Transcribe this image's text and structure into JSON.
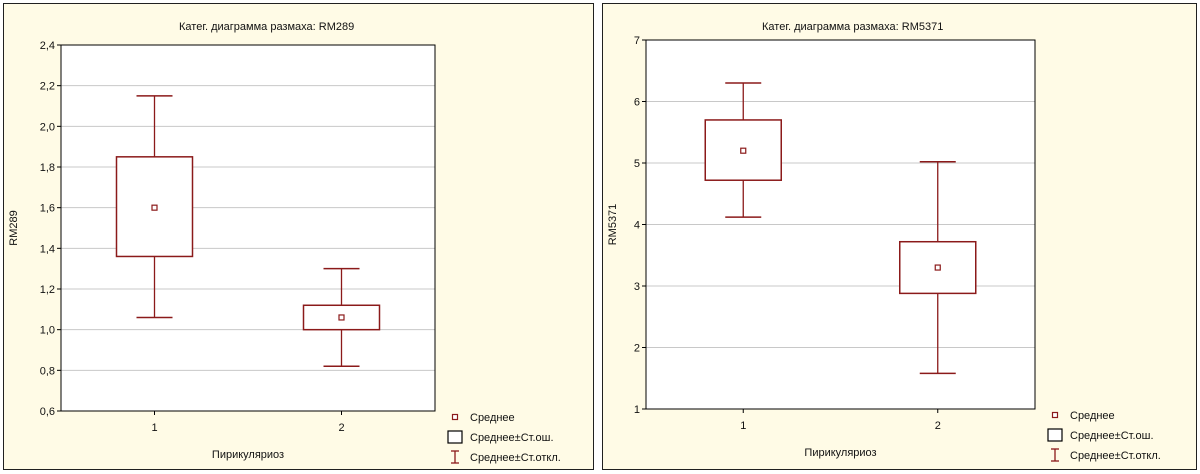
{
  "chart_data": [
    {
      "type": "box",
      "title": "Катег. диаграмма размаха:   RM289",
      "xlabel": "Пирикуляриоз",
      "ylabel": "RM289",
      "categories": [
        "1",
        "2"
      ],
      "ylim": [
        0.6,
        2.4
      ],
      "yticks": [
        0.6,
        0.8,
        1.0,
        1.2,
        1.4,
        1.6,
        1.8,
        2.0,
        2.2,
        2.4
      ],
      "ytick_labels": [
        "0,6",
        "0,8",
        "1,0",
        "1,2",
        "1,4",
        "1,6",
        "1,8",
        "2,0",
        "2,2",
        "2,4"
      ],
      "grid": true,
      "legend": [
        "Среднее",
        "Среднее±Ст.ош.",
        "Среднее±Ст.откл."
      ],
      "legend_position": "bottom-right, outside plot",
      "boxes": [
        {
          "category": "1",
          "mean": 1.6,
          "se_low": 1.36,
          "se_high": 1.85,
          "sd_low": 1.06,
          "sd_high": 2.15
        },
        {
          "category": "2",
          "mean": 1.06,
          "se_low": 1.0,
          "se_high": 1.12,
          "sd_low": 0.82,
          "sd_high": 1.3
        }
      ]
    },
    {
      "type": "box",
      "title": "Катег. диаграмма размаха:   RM5371",
      "xlabel": "Пирикуляриоз",
      "ylabel": "RM5371",
      "categories": [
        "1",
        "2"
      ],
      "ylim": [
        1,
        7
      ],
      "yticks": [
        1,
        2,
        3,
        4,
        5,
        6,
        7
      ],
      "ytick_labels": [
        "1",
        "2",
        "3",
        "4",
        "5",
        "6",
        "7"
      ],
      "grid": true,
      "legend": [
        "Среднее",
        "Среднее±Ст.ош.",
        "Среднее±Ст.откл."
      ],
      "legend_position": "bottom-right, outside plot",
      "boxes": [
        {
          "category": "1",
          "mean": 5.2,
          "se_low": 4.72,
          "se_high": 5.7,
          "sd_low": 4.12,
          "sd_high": 6.3
        },
        {
          "category": "2",
          "mean": 3.3,
          "se_low": 2.88,
          "se_high": 3.72,
          "sd_low": 1.58,
          "sd_high": 5.02
        }
      ]
    }
  ],
  "colors": {
    "series": "#8b1a1a",
    "grid": "#c8c8c8",
    "panel_bg": "#fffbe6",
    "plot_bg": "#ffffff"
  }
}
